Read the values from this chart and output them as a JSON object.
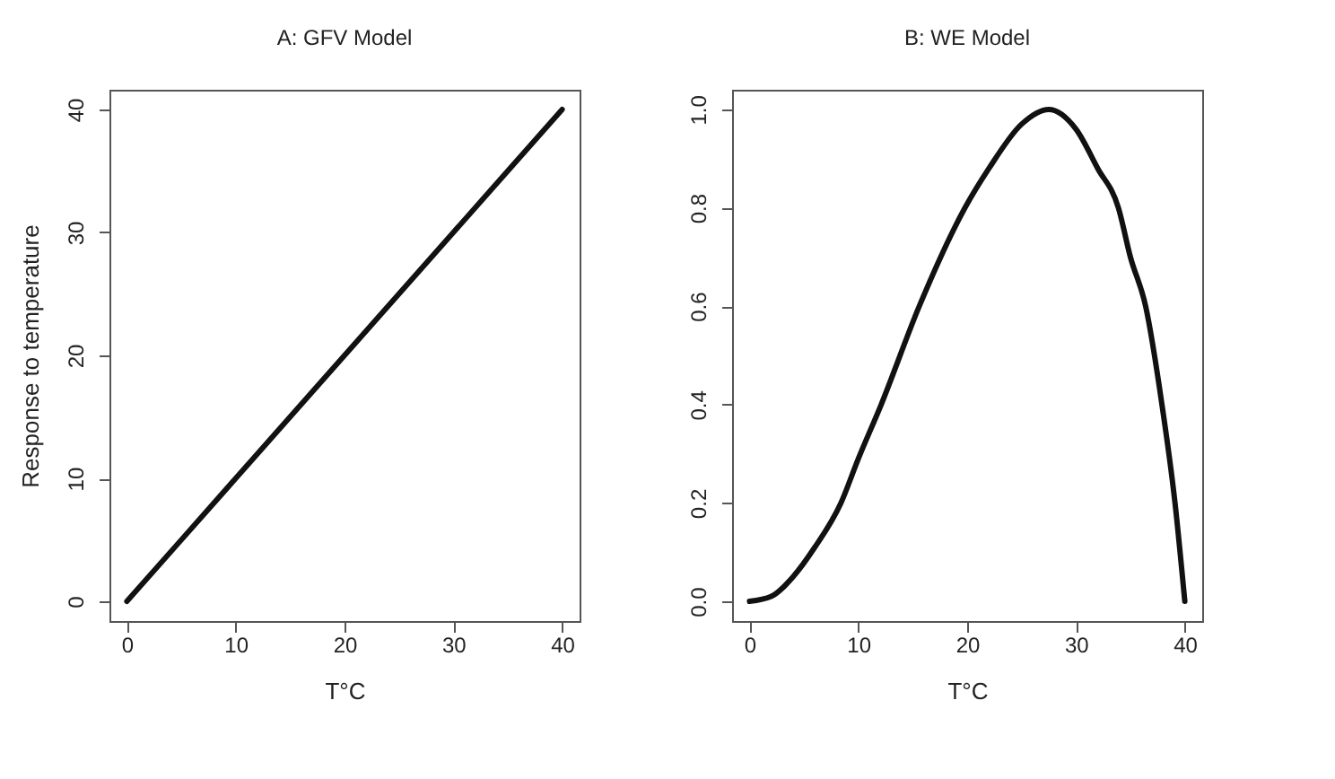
{
  "chart_data": [
    {
      "type": "line",
      "title": "A: GFV Model",
      "xlabel": "T°C",
      "ylabel": "Response to temperature",
      "x": [
        0,
        10,
        20,
        30,
        40
      ],
      "series": [
        {
          "color": "#111111",
          "values": [
            0,
            10,
            20,
            30,
            40
          ]
        }
      ],
      "xlim": [
        -1.6,
        41.6
      ],
      "xticks": [
        0,
        10,
        20,
        30,
        40
      ],
      "ylim": [
        -1.6,
        41.6
      ],
      "yticks": [
        0,
        10,
        20,
        30,
        40
      ],
      "grid": false
    },
    {
      "type": "line",
      "title": "B: WE Model",
      "xlabel": "T°C",
      "x": [
        0,
        2,
        4,
        6,
        8.4,
        10,
        12.1,
        15.6,
        19.8,
        22,
        25,
        27.5,
        30,
        32,
        33.9,
        35,
        36.4,
        37.9,
        39.1,
        40
      ],
      "series": [
        {
          "color": "#111111",
          "values": [
            0,
            0.01,
            0.05,
            0.11,
            0.2,
            0.29,
            0.4,
            0.6,
            0.8,
            0.88,
            0.97,
            1.0,
            0.96,
            0.88,
            0.8,
            0.7,
            0.6,
            0.4,
            0.2,
            0
          ]
        }
      ],
      "xlim": [
        -1.6,
        41.6
      ],
      "xticks": [
        0,
        10,
        20,
        30,
        40
      ],
      "ylim": [
        -0.04,
        1.04
      ],
      "yticks": [
        {
          "value": 0,
          "label": "0.0"
        },
        0.2,
        0.4,
        0.6,
        0.8,
        {
          "value": 1,
          "label": "1.0"
        }
      ],
      "grid": false
    }
  ]
}
